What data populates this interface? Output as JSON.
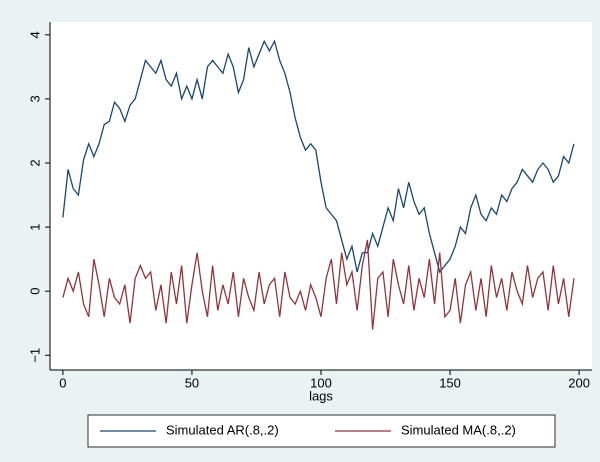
{
  "chart_data": {
    "type": "line",
    "xlabel": "lags",
    "x": [
      0,
      2,
      4,
      6,
      8,
      10,
      12,
      14,
      16,
      18,
      20,
      22,
      24,
      26,
      28,
      30,
      32,
      34,
      36,
      38,
      40,
      42,
      44,
      46,
      48,
      50,
      52,
      54,
      56,
      58,
      60,
      62,
      64,
      66,
      68,
      70,
      72,
      74,
      76,
      78,
      80,
      82,
      84,
      86,
      88,
      90,
      92,
      94,
      96,
      98,
      100,
      102,
      104,
      106,
      108,
      110,
      112,
      114,
      116,
      118,
      120,
      122,
      124,
      126,
      128,
      130,
      132,
      134,
      136,
      138,
      140,
      142,
      144,
      146,
      148,
      150,
      152,
      154,
      156,
      158,
      160,
      162,
      164,
      166,
      168,
      170,
      172,
      174,
      176,
      178,
      180,
      182,
      184,
      186,
      188,
      190,
      192,
      194,
      196,
      198
    ],
    "series": [
      {
        "name": "Simulated AR(.8,.2)",
        "color": "#1a476f",
        "values": [
          1.15,
          1.9,
          1.6,
          1.5,
          2.05,
          2.3,
          2.1,
          2.3,
          2.6,
          2.65,
          2.95,
          2.85,
          2.65,
          2.9,
          3.0,
          3.3,
          3.6,
          3.5,
          3.4,
          3.6,
          3.3,
          3.2,
          3.4,
          3.0,
          3.2,
          3.0,
          3.3,
          3.0,
          3.5,
          3.6,
          3.5,
          3.4,
          3.7,
          3.5,
          3.1,
          3.3,
          3.8,
          3.5,
          3.7,
          3.9,
          3.75,
          3.9,
          3.6,
          3.4,
          3.1,
          2.7,
          2.4,
          2.2,
          2.3,
          2.2,
          1.7,
          1.3,
          1.2,
          1.1,
          0.8,
          0.5,
          0.7,
          0.3,
          0.6,
          0.6,
          0.9,
          0.7,
          1.0,
          1.3,
          1.1,
          1.6,
          1.3,
          1.7,
          1.4,
          1.2,
          1.3,
          0.9,
          0.6,
          0.3,
          0.4,
          0.5,
          0.7,
          1.0,
          0.9,
          1.3,
          1.5,
          1.2,
          1.1,
          1.3,
          1.2,
          1.5,
          1.4,
          1.6,
          1.7,
          1.9,
          1.8,
          1.7,
          1.9,
          2.0,
          1.9,
          1.7,
          1.8,
          2.1,
          2.0,
          2.3
        ]
      },
      {
        "name": "Simulated MA(.8,.2)",
        "color": "#90353b",
        "values": [
          -0.1,
          0.2,
          0.0,
          0.3,
          -0.2,
          -0.4,
          0.5,
          0.1,
          -0.4,
          0.2,
          -0.1,
          -0.2,
          0.1,
          -0.5,
          0.2,
          0.4,
          0.2,
          0.3,
          -0.3,
          0.1,
          -0.5,
          0.3,
          -0.2,
          0.4,
          -0.5,
          0.1,
          0.6,
          0.0,
          -0.4,
          0.4,
          -0.3,
          0.1,
          -0.2,
          0.3,
          -0.4,
          0.2,
          -0.1,
          -0.3,
          0.3,
          -0.2,
          0.1,
          0.2,
          -0.4,
          0.3,
          -0.1,
          -0.2,
          0.0,
          -0.3,
          0.1,
          -0.1,
          -0.4,
          0.2,
          0.5,
          -0.2,
          0.6,
          0.1,
          0.3,
          -0.3,
          0.4,
          0.8,
          -0.6,
          0.2,
          0.3,
          -0.4,
          0.5,
          0.1,
          -0.2,
          0.4,
          -0.3,
          0.2,
          -0.1,
          0.5,
          -0.2,
          0.6,
          -0.4,
          -0.3,
          0.2,
          -0.5,
          0.1,
          0.3,
          -0.3,
          0.2,
          -0.4,
          0.4,
          -0.1,
          0.2,
          -0.3,
          0.3,
          0.0,
          -0.2,
          0.4,
          -0.1,
          0.2,
          0.3,
          -0.3,
          0.4,
          -0.2,
          0.2,
          -0.4,
          0.2
        ]
      }
    ],
    "xlim": [
      -5,
      205
    ],
    "xticks": [
      0,
      50,
      100,
      150,
      200
    ],
    "ylim": [
      -1.23,
      4.2
    ],
    "yticks": [
      {
        "value": -1,
        "label": "−1"
      },
      0,
      1,
      2,
      3,
      4
    ],
    "grid": false,
    "legend": "bottom"
  }
}
